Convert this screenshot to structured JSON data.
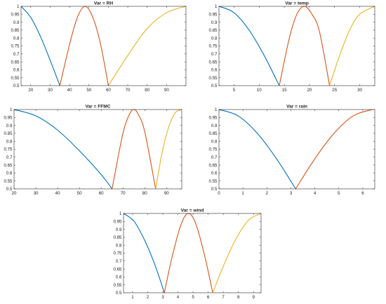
{
  "chart_data": [
    {
      "type": "line",
      "title": "Var = RH",
      "xlim": [
        15,
        100
      ],
      "ylim": [
        0.5,
        1
      ],
      "xticks": [
        20,
        30,
        40,
        50,
        60,
        70,
        80,
        90
      ],
      "yticks": [
        0.5,
        0.55,
        0.6,
        0.65,
        0.7,
        0.75,
        0.8,
        0.85,
        0.9,
        0.95,
        1
      ],
      "series": [
        {
          "color": "#0072BD",
          "x": [
            15,
            20,
            25,
            30,
            35
          ],
          "y": [
            1.0,
            0.93,
            0.81,
            0.66,
            0.5
          ]
        },
        {
          "color": "#D95319",
          "x": [
            35,
            40,
            44,
            48,
            52,
            56,
            60
          ],
          "y": [
            0.5,
            0.76,
            0.93,
            1.0,
            0.93,
            0.76,
            0.5
          ]
        },
        {
          "color": "#EDB120",
          "x": [
            60,
            70,
            80,
            90,
            100
          ],
          "y": [
            0.5,
            0.69,
            0.86,
            0.96,
            1.0
          ]
        }
      ]
    },
    {
      "type": "line",
      "title": "Var = temp",
      "xlim": [
        2,
        33
      ],
      "ylim": [
        0.5,
        1
      ],
      "xticks": [
        5,
        10,
        15,
        20,
        25,
        30
      ],
      "yticks": [
        0.5,
        0.55,
        0.6,
        0.65,
        0.7,
        0.75,
        0.8,
        0.85,
        0.9,
        0.95,
        1
      ],
      "series": [
        {
          "color": "#0072BD",
          "x": [
            2,
            5,
            8,
            11,
            14
          ],
          "y": [
            1.0,
            0.96,
            0.85,
            0.69,
            0.5
          ]
        },
        {
          "color": "#D95319",
          "x": [
            14,
            16,
            17.5,
            19,
            20.5,
            22,
            24
          ],
          "y": [
            0.5,
            0.8,
            0.95,
            1.0,
            0.95,
            0.84,
            0.5
          ]
        },
        {
          "color": "#EDB120",
          "x": [
            24,
            26,
            28,
            30,
            33
          ],
          "y": [
            0.5,
            0.69,
            0.85,
            0.95,
            1.0
          ]
        }
      ]
    },
    {
      "type": "line",
      "title": "Var = FFMC",
      "xlim": [
        20,
        97
      ],
      "ylim": [
        0.5,
        1
      ],
      "xticks": [
        20,
        30,
        40,
        50,
        60,
        70,
        80,
        90
      ],
      "yticks": [
        0.5,
        0.55,
        0.6,
        0.65,
        0.7,
        0.75,
        0.8,
        0.85,
        0.9,
        0.95,
        1
      ],
      "series": [
        {
          "color": "#0072BD",
          "x": [
            20,
            30,
            40,
            50,
            60,
            65
          ],
          "y": [
            1.0,
            0.96,
            0.87,
            0.74,
            0.59,
            0.5
          ]
        },
        {
          "color": "#D95319",
          "x": [
            65,
            70,
            73,
            75,
            77,
            80,
            85
          ],
          "y": [
            0.5,
            0.85,
            0.97,
            1.0,
            0.97,
            0.86,
            0.5
          ]
        },
        {
          "color": "#EDB120",
          "x": [
            85,
            88,
            91,
            94,
            97
          ],
          "y": [
            0.5,
            0.73,
            0.89,
            0.98,
            1.0
          ]
        }
      ]
    },
    {
      "type": "line",
      "title": "Var = rain",
      "xlim": [
        0,
        6.5
      ],
      "ylim": [
        0.5,
        1
      ],
      "xticks": [
        0,
        1,
        2,
        3,
        4,
        5,
        6
      ],
      "yticks": [
        0.5,
        0.55,
        0.6,
        0.65,
        0.7,
        0.75,
        0.8,
        0.85,
        0.9,
        0.95,
        1
      ],
      "series": [
        {
          "color": "#0072BD",
          "x": [
            0,
            0.8,
            1.6,
            2.4,
            3.2
          ],
          "y": [
            1.0,
            0.96,
            0.85,
            0.69,
            0.5
          ]
        },
        {
          "color": "#D95319",
          "x": [
            3.2,
            4.0,
            4.8,
            5.6,
            6.4
          ],
          "y": [
            0.5,
            0.69,
            0.85,
            0.96,
            1.0
          ]
        }
      ]
    },
    {
      "type": "line",
      "title": "Var = wind",
      "xlim": [
        0.4,
        9.5
      ],
      "ylim": [
        0.5,
        1
      ],
      "xticks": [
        1,
        2,
        3,
        4,
        5,
        6,
        7,
        8,
        9
      ],
      "yticks": [
        0.5,
        0.55,
        0.6,
        0.65,
        0.7,
        0.75,
        0.8,
        0.85,
        0.9,
        0.95,
        1
      ],
      "series": [
        {
          "color": "#0072BD",
          "x": [
            0.4,
            1.1,
            1.8,
            2.5,
            3.1
          ],
          "y": [
            1.0,
            0.95,
            0.83,
            0.67,
            0.5
          ]
        },
        {
          "color": "#D95319",
          "x": [
            3.1,
            3.6,
            4.2,
            4.7,
            5.2,
            5.8,
            6.3
          ],
          "y": [
            0.5,
            0.72,
            0.93,
            1.0,
            0.93,
            0.72,
            0.5
          ]
        },
        {
          "color": "#EDB120",
          "x": [
            6.3,
            7.1,
            7.9,
            8.7,
            9.5
          ],
          "y": [
            0.5,
            0.69,
            0.85,
            0.96,
            1.0
          ]
        }
      ]
    }
  ]
}
